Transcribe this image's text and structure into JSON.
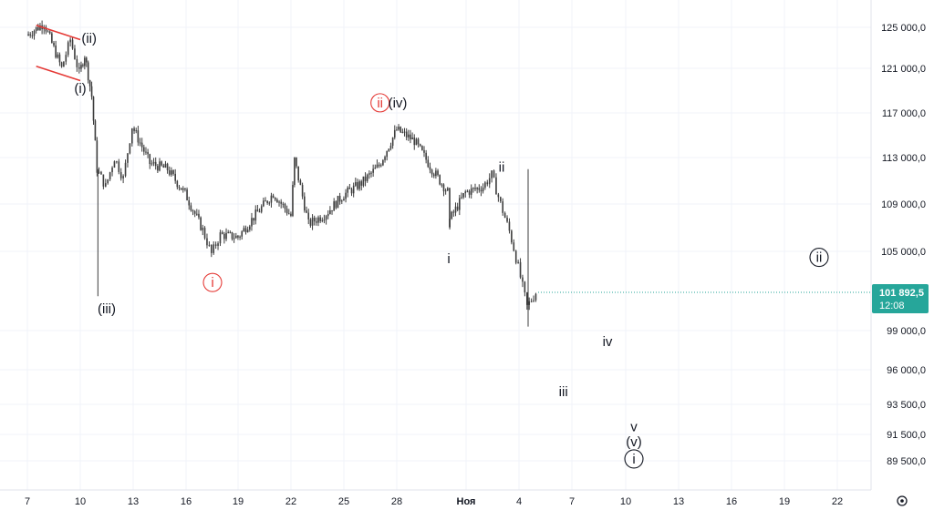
{
  "colors": {
    "candle": "#3d3d3d",
    "grid": "#f0f3fa",
    "channel": "#e53935",
    "price_box": "#26a69a",
    "red_label": "#e53935",
    "black_label": "#131722"
  },
  "chart_data": {
    "type": "candlestick",
    "title": "",
    "xlabel": "",
    "ylabel": "",
    "x_ticks": [
      "7",
      "10",
      "13",
      "16",
      "19",
      "22",
      "25",
      "28",
      "Ноя",
      "4",
      "7",
      "10",
      "13",
      "16",
      "19",
      "22"
    ],
    "y_ticks": [
      "125 000,0",
      "121 000,0",
      "117 000,0",
      "113 000,0",
      "109 000,0",
      "105 000,0",
      "99 000,0",
      "96 000,0",
      "93 500,0",
      "91 500,0",
      "89 500,0"
    ],
    "y_scale": "log",
    "ylim": [
      88000,
      127000
    ],
    "last_price": "101 892,5",
    "countdown": "12:08",
    "price_path": [
      [
        "7",
        124200
      ],
      [
        "8",
        125400
      ],
      [
        "9",
        121000
      ],
      [
        "9.5",
        123800
      ],
      [
        "10",
        120500
      ],
      [
        "10.3",
        122300
      ],
      [
        "10.7",
        118500
      ],
      [
        "11",
        112000
      ],
      [
        "11.5",
        110500
      ],
      [
        "12",
        113000
      ],
      [
        "12.5",
        111200
      ],
      [
        "13",
        115800
      ],
      [
        "14",
        112500
      ],
      [
        "15",
        112000
      ],
      [
        "16",
        109900
      ],
      [
        "17",
        106800
      ],
      [
        "17.5",
        104800
      ],
      [
        "18",
        106400
      ],
      [
        "19",
        106200
      ],
      [
        "20",
        108100
      ],
      [
        "21",
        109900
      ],
      [
        "22",
        108000
      ],
      [
        "22.2",
        112800
      ],
      [
        "23",
        107300
      ],
      [
        "24",
        108200
      ],
      [
        "25",
        109800
      ],
      [
        "26",
        110800
      ],
      [
        "27",
        112300
      ],
      [
        "28",
        115500
      ],
      [
        "29",
        114500
      ],
      [
        "30",
        112000
      ],
      [
        "31",
        109800
      ],
      [
        "1",
        107400
      ],
      [
        "2",
        110000
      ],
      [
        "3",
        110500
      ],
      [
        "3.5",
        111500
      ],
      [
        "4",
        109000
      ],
      [
        "4.5",
        106700
      ],
      [
        "5",
        103800
      ],
      [
        "5.5",
        100800
      ],
      [
        "6",
        101900
      ]
    ],
    "wick_spikes": [
      {
        "x": "11",
        "low": 101600
      },
      {
        "x": "5.5",
        "low": 99300
      }
    ],
    "annotations": [
      {
        "text": "(ii)",
        "x": "10.5",
        "y": 123500,
        "color": "black"
      },
      {
        "text": "(i)",
        "x": "10",
        "y": 118800,
        "color": "black"
      },
      {
        "text": "(iii)",
        "x": "11.5",
        "y": 100300,
        "color": "black"
      },
      {
        "text": "ⓘ",
        "x": "17.5",
        "y": 102300,
        "color": "red"
      },
      {
        "text": "ⓘⓘ",
        "x": "27",
        "y": 117500,
        "color": "red"
      },
      {
        "text": "(iv)",
        "x": "28",
        "y": 117500,
        "color": "black"
      },
      {
        "text": "i",
        "x": "1",
        "y": 104100,
        "color": "black"
      },
      {
        "text": "ii",
        "x": "4",
        "y": 111800,
        "color": "black"
      },
      {
        "text": "iv",
        "x": "10",
        "y": 97800,
        "color": "black"
      },
      {
        "text": "iii",
        "x": "7.5",
        "y": 94100,
        "color": "black"
      },
      {
        "text": "v",
        "x": "11.5",
        "y": 91700,
        "color": "black"
      },
      {
        "text": "(v)",
        "x": "11.5",
        "y": 90600,
        "color": "black"
      },
      {
        "text": "ⓘ",
        "x": "11.5",
        "y": 89300,
        "color": "black"
      },
      {
        "text": "ⓘⓘ",
        "x": "22",
        "y": 104200,
        "color": "black"
      }
    ],
    "channel_lines": [
      {
        "from": [
          "7.5",
          125200
        ],
        "to": [
          "10",
          123800
        ]
      },
      {
        "from": [
          "7.5",
          121200
        ],
        "to": [
          "10",
          119900
        ]
      }
    ]
  }
}
